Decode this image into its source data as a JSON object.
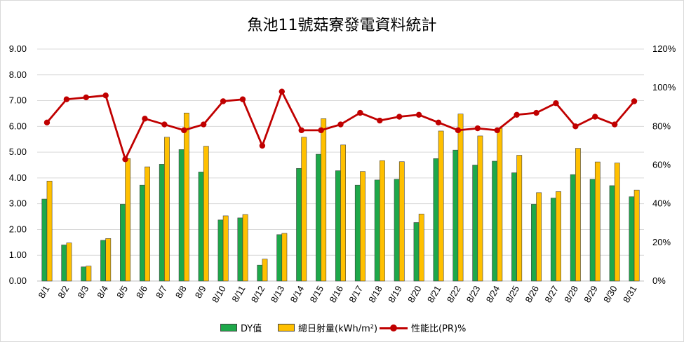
{
  "chart_data": {
    "type": "bar",
    "title": "魚池11號菇寮發電資料統計",
    "categories": [
      "8/1",
      "8/2",
      "8/3",
      "8/4",
      "8/5",
      "8/6",
      "8/7",
      "8/8",
      "8/9",
      "8/10",
      "8/11",
      "8/12",
      "8/13",
      "8/14",
      "8/15",
      "8/16",
      "8/17",
      "8/18",
      "8/19",
      "8/20",
      "8/21",
      "8/22",
      "8/23",
      "8/24",
      "8/25",
      "8/26",
      "8/27",
      "8/28",
      "8/29",
      "8/30",
      "8/31"
    ],
    "series": [
      {
        "name": "DY值",
        "type": "bar",
        "axis": "left",
        "color": "#1ea84a",
        "values": [
          3.18,
          1.4,
          0.55,
          1.58,
          2.98,
          3.72,
          4.53,
          5.1,
          4.23,
          2.37,
          2.45,
          0.62,
          1.8,
          4.37,
          4.92,
          4.28,
          3.72,
          3.92,
          3.95,
          2.27,
          4.75,
          5.08,
          4.5,
          4.65,
          4.2,
          2.98,
          3.22,
          4.13,
          3.95,
          3.7,
          3.27
        ]
      },
      {
        "name": "總日射量(kWh/m²)",
        "type": "bar",
        "axis": "left",
        "color": "#ffc000",
        "values": [
          3.88,
          1.48,
          0.58,
          1.65,
          4.75,
          4.43,
          5.58,
          6.52,
          5.23,
          2.53,
          2.58,
          0.85,
          1.85,
          5.58,
          6.3,
          5.28,
          4.25,
          4.67,
          4.63,
          2.6,
          5.82,
          6.48,
          5.63,
          5.93,
          4.88,
          3.43,
          3.47,
          5.15,
          4.62,
          4.58,
          3.53
        ]
      },
      {
        "name": "性能比(PR)%",
        "type": "line",
        "axis": "right",
        "color": "#c00000",
        "values": [
          82,
          94,
          95,
          96,
          63,
          84,
          81,
          78,
          81,
          93,
          94,
          70,
          98,
          78,
          78,
          81,
          87,
          83,
          85,
          86,
          82,
          78,
          79,
          78,
          86,
          87,
          92,
          80,
          85,
          81,
          93
        ]
      }
    ],
    "y_left": {
      "ylim": [
        0,
        9
      ],
      "ticks": [
        "0.00",
        "1.00",
        "2.00",
        "3.00",
        "4.00",
        "5.00",
        "6.00",
        "7.00",
        "8.00",
        "9.00"
      ]
    },
    "y_right": {
      "ylim": [
        0,
        120
      ],
      "ticks": [
        "0%",
        "20%",
        "40%",
        "60%",
        "80%",
        "100%",
        "120%"
      ]
    },
    "grid": true,
    "legend_position": "bottom"
  }
}
